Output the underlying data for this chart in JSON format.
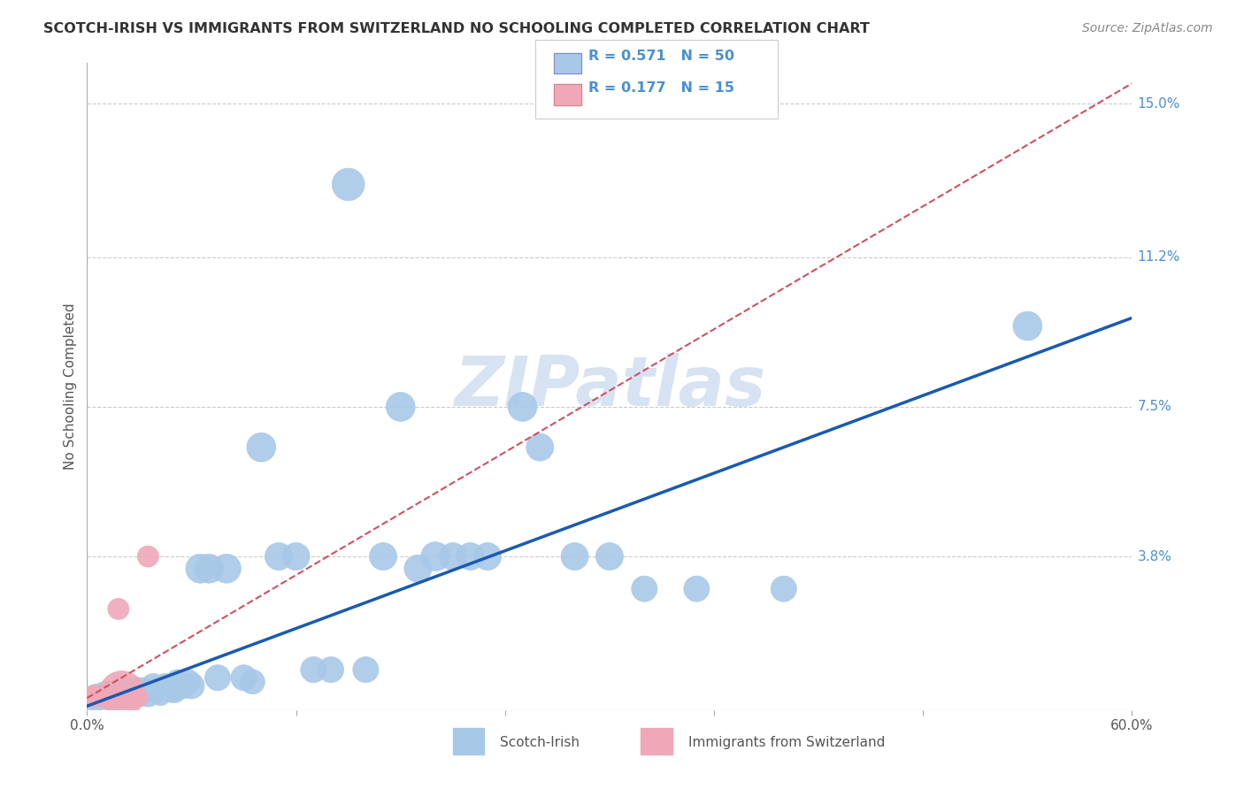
{
  "title": "SCOTCH-IRISH VS IMMIGRANTS FROM SWITZERLAND NO SCHOOLING COMPLETED CORRELATION CHART",
  "source": "Source: ZipAtlas.com",
  "ylabel": "No Schooling Completed",
  "xlim": [
    0.0,
    0.6
  ],
  "ylim": [
    0.0,
    0.16
  ],
  "yticks": [
    0.038,
    0.075,
    0.112,
    0.15
  ],
  "ytick_labels": [
    "3.8%",
    "7.5%",
    "11.2%",
    "15.0%"
  ],
  "legend_r1": "R = 0.571",
  "legend_n1": "N = 50",
  "legend_r2": "R = 0.177",
  "legend_n2": "N = 15",
  "blue_color": "#a8c8e8",
  "pink_color": "#f0a8b8",
  "line_blue": "#1a5ab0",
  "line_pink": "#d05060",
  "grid_color": "#cccccc",
  "watermark_color": "#d0dff0",
  "scotch_irish_x": [
    0.005,
    0.01,
    0.012,
    0.015,
    0.018,
    0.02,
    0.022,
    0.025,
    0.028,
    0.03,
    0.032,
    0.035,
    0.038,
    0.04,
    0.042,
    0.045,
    0.048,
    0.05,
    0.052,
    0.055,
    0.058,
    0.06,
    0.065,
    0.07,
    0.075,
    0.08,
    0.09,
    0.095,
    0.1,
    0.11,
    0.12,
    0.13,
    0.14,
    0.15,
    0.16,
    0.17,
    0.18,
    0.19,
    0.2,
    0.21,
    0.22,
    0.23,
    0.25,
    0.26,
    0.28,
    0.3,
    0.32,
    0.35,
    0.4,
    0.54
  ],
  "scotch_irish_y": [
    0.003,
    0.004,
    0.003,
    0.004,
    0.003,
    0.005,
    0.004,
    0.003,
    0.005,
    0.004,
    0.005,
    0.004,
    0.006,
    0.005,
    0.004,
    0.006,
    0.005,
    0.005,
    0.007,
    0.006,
    0.007,
    0.006,
    0.035,
    0.035,
    0.008,
    0.035,
    0.008,
    0.007,
    0.065,
    0.038,
    0.038,
    0.01,
    0.01,
    0.13,
    0.01,
    0.038,
    0.075,
    0.035,
    0.038,
    0.038,
    0.038,
    0.038,
    0.075,
    0.065,
    0.038,
    0.038,
    0.03,
    0.03,
    0.03,
    0.095
  ],
  "scotch_irish_size": [
    25,
    20,
    18,
    20,
    18,
    22,
    20,
    18,
    22,
    20,
    20,
    22,
    20,
    22,
    18,
    20,
    20,
    22,
    20,
    22,
    20,
    22,
    28,
    28,
    22,
    28,
    22,
    20,
    28,
    25,
    25,
    22,
    22,
    35,
    22,
    25,
    28,
    25,
    28,
    25,
    25,
    25,
    28,
    25,
    25,
    25,
    22,
    22,
    22,
    28
  ],
  "swiss_x": [
    0.002,
    0.004,
    0.006,
    0.008,
    0.01,
    0.012,
    0.015,
    0.018,
    0.02,
    0.022,
    0.025,
    0.028,
    0.03,
    0.035,
    0.015
  ],
  "swiss_y": [
    0.003,
    0.004,
    0.003,
    0.004,
    0.003,
    0.003,
    0.003,
    0.025,
    0.004,
    0.003,
    0.003,
    0.003,
    0.003,
    0.038,
    0.003
  ],
  "swiss_size": [
    12,
    10,
    10,
    10,
    10,
    10,
    12,
    15,
    70,
    10,
    10,
    10,
    10,
    15,
    10
  ],
  "watermark": "ZIPatlas",
  "bg_color": "#ffffff"
}
